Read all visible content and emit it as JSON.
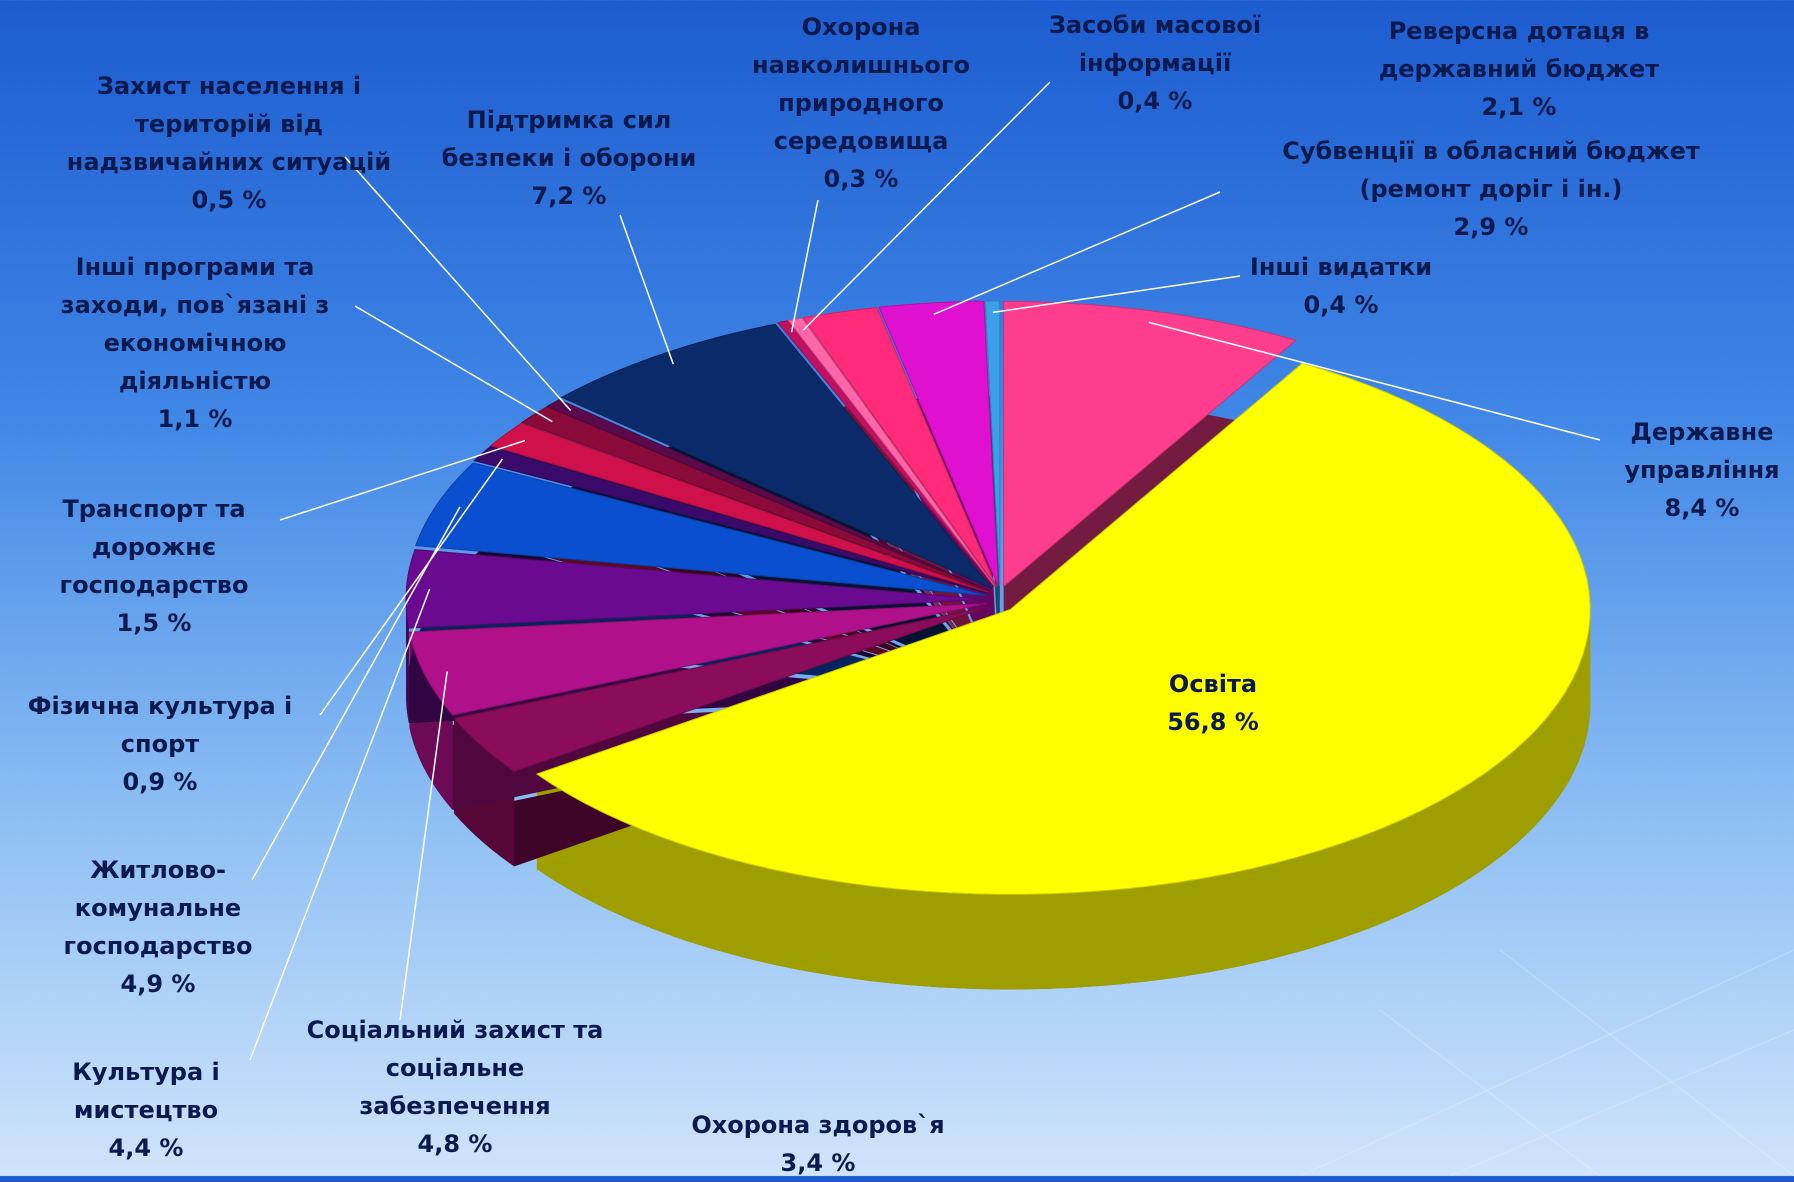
{
  "chart_data": {
    "type": "pie",
    "categories": [
      "Державне управління",
      "Освіта",
      "Охорона здоров`я",
      "Соціальний захист та соціальне забезпечення",
      "Культура і мистецтво",
      "Житлово-комунальне господарство",
      "Фізична культура і спорт",
      "Транспорт та дорожнє господарство",
      "Інші програми та заходи, пов`язані з економічною діяльністю",
      "Захист населення і територій від надзвичайних ситуацій",
      "Підтримка сил безпеки і оборони",
      "Охорона навколишнього природного середовища",
      "Засоби масової інформації",
      "Реверсна дотаця в державний бюджет",
      "Субвенції в обласний бюджет (ремонт доріг і ін.)",
      "Інші видатки"
    ],
    "values": [
      8.4,
      56.8,
      3.4,
      4.8,
      4.4,
      4.9,
      0.9,
      1.5,
      1.1,
      0.5,
      7.2,
      0.3,
      0.4,
      2.1,
      2.9,
      0.4
    ],
    "value_labels": [
      "8,4 %",
      "56,8 %",
      "3,4 %",
      "4,8 %",
      "4,4 %",
      "4,9 %",
      "0,9 %",
      "1,5 %",
      "1,1 %",
      "0,5 %",
      "7,2 %",
      "0,3 %",
      "0,4 %",
      "2,1 %",
      "2,9 %",
      "0,4 %"
    ],
    "colors": [
      "#ff3d8f",
      "#ffff00",
      "#8a0c5a",
      "#b0108a",
      "#6a0a90",
      "#0a4fd0",
      "#3a0a6a",
      "#d0104a",
      "#8a0a3a",
      "#5a0a4a",
      "#0a2a6a",
      "#c01060",
      "#ff66aa",
      "#ff2a7a",
      "#e010d0",
      "#3aa0e8"
    ]
  }
}
